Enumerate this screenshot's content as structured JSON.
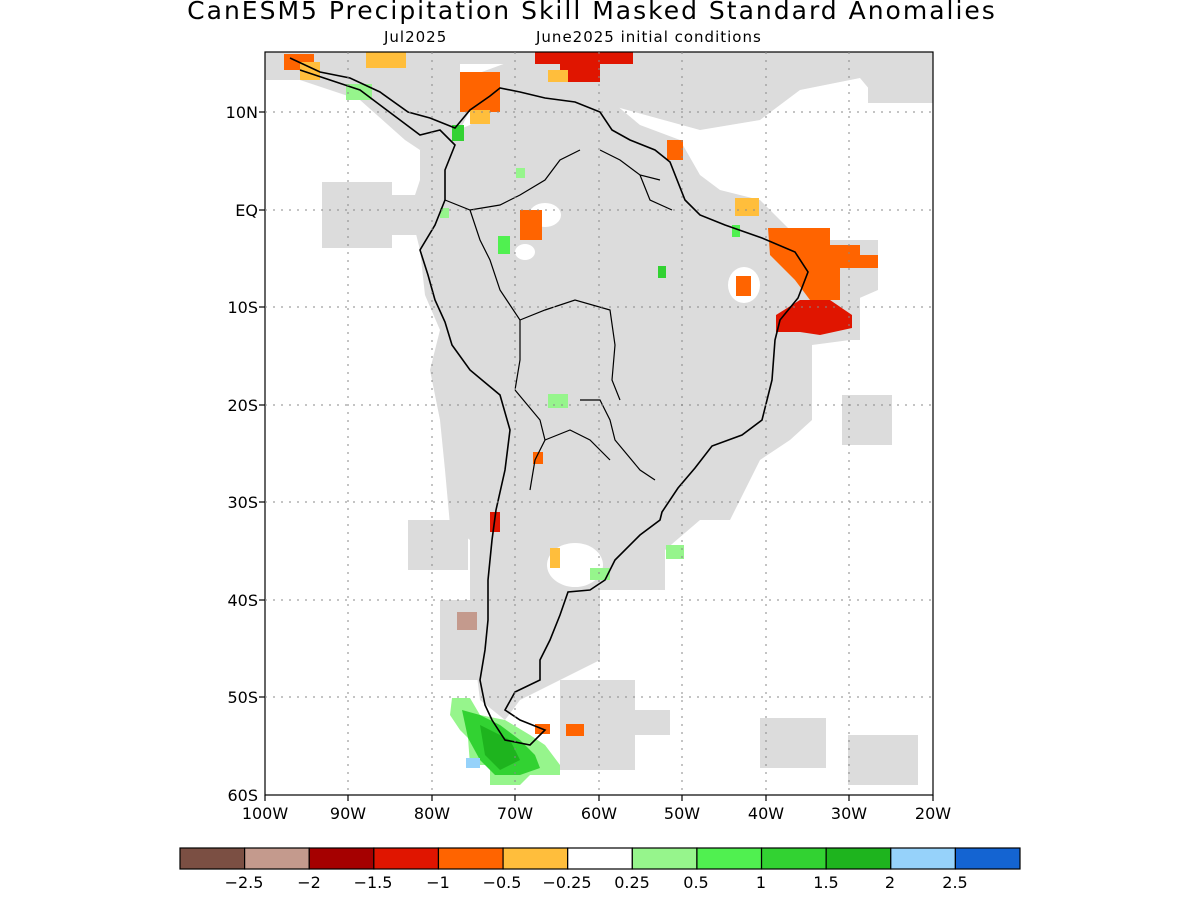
{
  "map": {
    "title": "CanESM5 Precipitation Skill Masked Standard Anomalies",
    "subtitle_left": "Jul2025",
    "subtitle_right": "June2025 initial conditions",
    "lat_labels": [
      "10N",
      "EQ",
      "10S",
      "20S",
      "30S",
      "40S",
      "50S",
      "60S"
    ],
    "lon_labels": [
      "100W",
      "90W",
      "80W",
      "70W",
      "60W",
      "50W",
      "40W",
      "30W",
      "20W"
    ],
    "mask_color": "#dcdcdc"
  },
  "colorbar": {
    "colors": [
      "#7b4f43",
      "#c49a8d",
      "#a50000",
      "#e01500",
      "#ff6400",
      "#ffbe3c",
      "#ffffff",
      "#96f58c",
      "#50f050",
      "#32d232",
      "#1eb41e",
      "#96d2fa",
      "#1464d2"
    ],
    "tick_labels": [
      "−2.5",
      "−2",
      "−1.5",
      "−1",
      "−0.5",
      "−0.25",
      "0.25",
      "0.5",
      "1",
      "1.5",
      "2",
      "2.5"
    ]
  }
}
